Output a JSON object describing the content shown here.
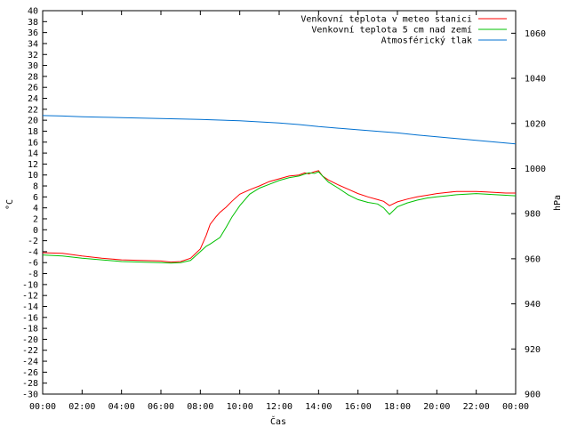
{
  "chart_data": {
    "type": "line",
    "xlabel": "Čas",
    "ylabel_left": "°C",
    "ylabel_right": "hPa",
    "x_range": [
      0,
      24
    ],
    "ylim_left": [
      -30,
      40
    ],
    "ylim_right": [
      900,
      1070
    ],
    "x_ticks": [
      "00:00",
      "02:00",
      "04:00",
      "06:00",
      "08:00",
      "10:00",
      "12:00",
      "14:00",
      "16:00",
      "18:00",
      "20:00",
      "22:00",
      "00:00"
    ],
    "y_ticks_left": [
      -30,
      -28,
      -26,
      -24,
      -22,
      -20,
      -18,
      -16,
      -14,
      -12,
      -10,
      -8,
      -6,
      -4,
      -2,
      0,
      2,
      4,
      6,
      8,
      10,
      12,
      14,
      16,
      18,
      20,
      22,
      24,
      26,
      28,
      30,
      32,
      34,
      36,
      38,
      40
    ],
    "y_ticks_right": [
      900,
      920,
      940,
      960,
      980,
      1000,
      1020,
      1040,
      1060
    ],
    "grid": false,
    "legend_position": "top-right",
    "series": [
      {
        "name": "Venkovní teplota v meteo stanici",
        "color": "#ff0000",
        "axis": "left",
        "x": [
          0,
          1,
          2,
          3,
          4,
          5,
          6,
          6.5,
          7,
          7.5,
          8,
          8.3,
          8.5,
          8.8,
          9,
          9.3,
          9.6,
          10,
          10.5,
          11,
          11.5,
          12,
          12.5,
          13,
          13.3,
          13.5,
          13.8,
          14,
          14.2,
          14.5,
          15,
          15.5,
          16,
          16.5,
          17,
          17.3,
          17.6,
          18,
          18.5,
          19,
          19.5,
          20,
          20.5,
          21,
          21.5,
          22,
          22.5,
          23,
          23.5,
          24
        ],
        "y": [
          -4.2,
          -4.3,
          -4.8,
          -5.2,
          -5.5,
          -5.6,
          -5.7,
          -5.9,
          -5.8,
          -5.2,
          -3.5,
          -1,
          1,
          2.4,
          3.2,
          4.1,
          5.2,
          6.5,
          7.3,
          8,
          8.8,
          9.3,
          9.8,
          10,
          10.4,
          10.2,
          10.6,
          10.8,
          9.8,
          9.1,
          8.2,
          7.4,
          6.6,
          6,
          5.5,
          5.2,
          4.4,
          5.1,
          5.6,
          6,
          6.3,
          6.6,
          6.8,
          7,
          7,
          7,
          6.9,
          6.8,
          6.7,
          6.7
        ]
      },
      {
        "name": "Venkovní teplota 5 cm nad zemí",
        "color": "#00c000",
        "axis": "left",
        "x": [
          0,
          1,
          2,
          3,
          4,
          5,
          6,
          6.5,
          7,
          7.5,
          8,
          8.3,
          8.5,
          9,
          9.3,
          9.6,
          10,
          10.5,
          11,
          11.5,
          12,
          12.5,
          13,
          13.5,
          13.8,
          14,
          14.2,
          14.5,
          15,
          15.5,
          16,
          16.5,
          17,
          17.3,
          17.6,
          18,
          18.5,
          19,
          19.5,
          20,
          20.5,
          21,
          21.5,
          22,
          22.5,
          23,
          23.5,
          24
        ],
        "y": [
          -4.6,
          -4.8,
          -5.2,
          -5.5,
          -5.8,
          -5.9,
          -6,
          -6.1,
          -6,
          -5.6,
          -4,
          -3,
          -2.6,
          -1.4,
          0.4,
          2.3,
          4.4,
          6.5,
          7.6,
          8.3,
          9,
          9.5,
          9.8,
          10.4,
          10.3,
          10.6,
          9.8,
          8.7,
          7.6,
          6.4,
          5.5,
          5,
          4.7,
          4,
          2.8,
          4.2,
          4.9,
          5.4,
          5.8,
          6,
          6.2,
          6.4,
          6.5,
          6.6,
          6.5,
          6.4,
          6.3,
          6.2
        ]
      },
      {
        "name": "Atmosférický tlak",
        "color": "#0070d0",
        "axis": "right",
        "x": [
          0,
          1,
          2,
          3,
          4,
          5,
          6,
          7,
          8,
          9,
          10,
          11,
          12,
          13,
          14,
          15,
          16,
          17,
          18,
          19,
          20,
          21,
          22,
          23,
          24
        ],
        "y": [
          1023.5,
          1023.3,
          1023,
          1022.8,
          1022.6,
          1022.4,
          1022.2,
          1022,
          1021.8,
          1021.5,
          1021.2,
          1020.7,
          1020.2,
          1019.5,
          1018.6,
          1017.9,
          1017.2,
          1016.5,
          1015.8,
          1014.9,
          1014.1,
          1013.3,
          1012.5,
          1011.7,
          1010.9
        ]
      }
    ]
  }
}
